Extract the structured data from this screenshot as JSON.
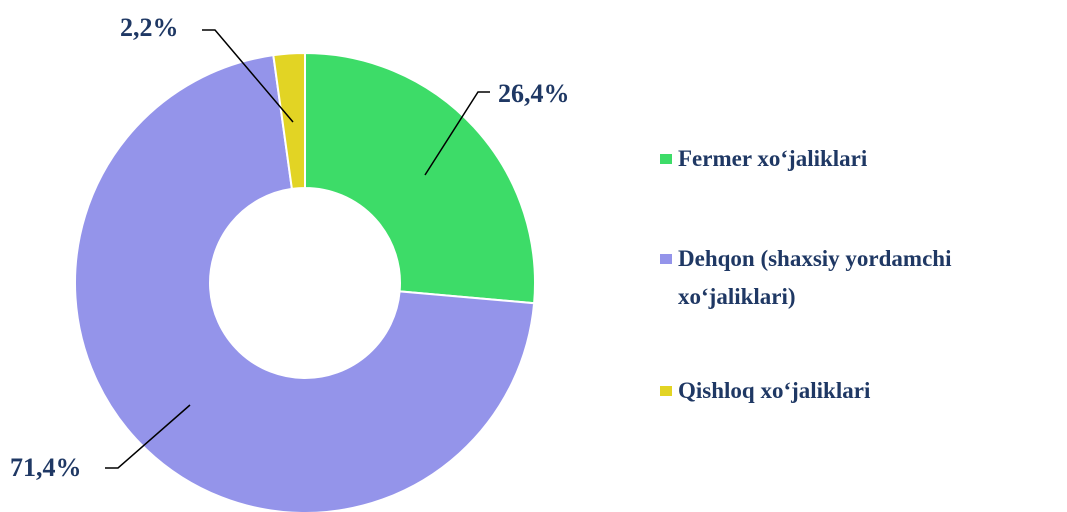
{
  "chart_data": {
    "type": "donut",
    "categories": [
      "Fermer xo‘jaliklari",
      "Dehqon (shaxsiy yordamchi xo‘jaliklari)",
      "Qishloq xo‘jaliklari"
    ],
    "values": [
      26.4,
      71.4,
      2.2
    ],
    "value_labels": [
      "26,4%",
      "71,4%",
      "2,2%"
    ],
    "colors": [
      "#3ddc68",
      "#9494ea",
      "#e2d424"
    ],
    "legend": "right"
  }
}
